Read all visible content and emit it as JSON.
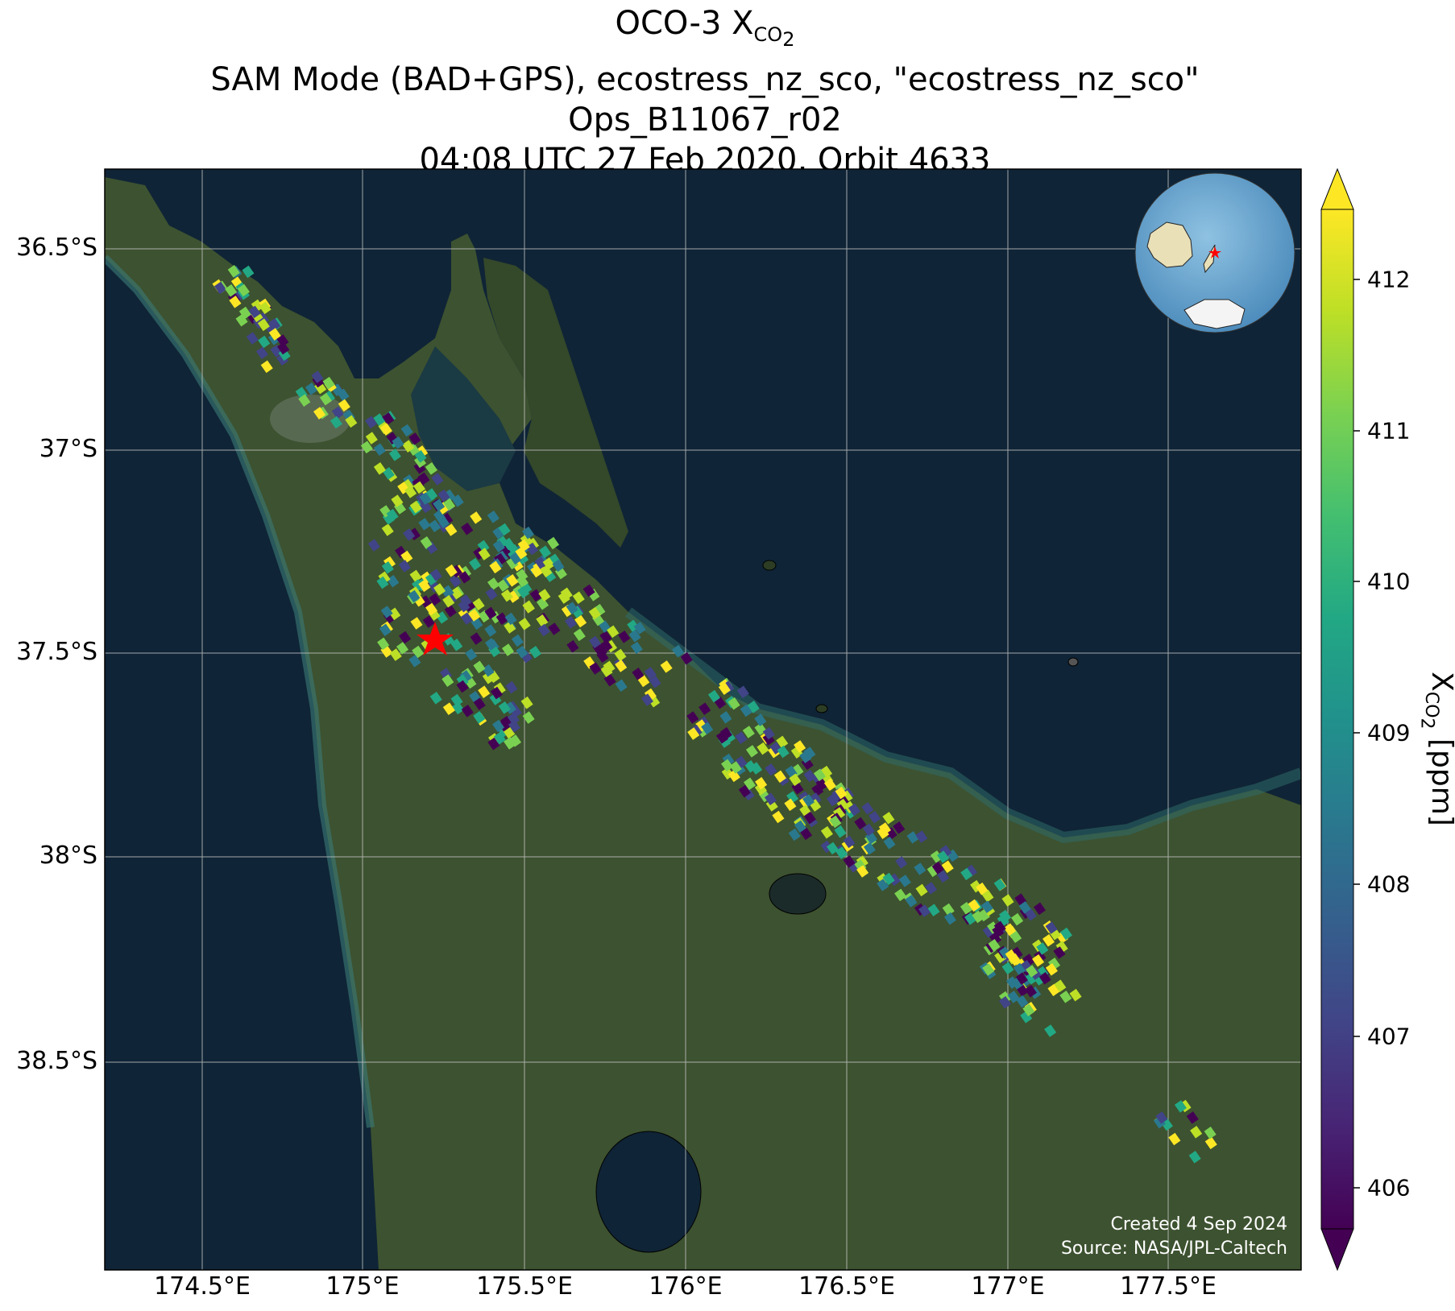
{
  "title": {
    "line1_prefix": "OCO-3 X",
    "line1_sub": "CO",
    "line1_sub2": "2",
    "line2": "SAM Mode (BAD+GPS), ecostress_nz_sco, \"ecostress_nz_sco\"",
    "line3": "Ops_B11067_r02",
    "line4": "04:08 UTC 27 Feb 2020, Orbit 4633"
  },
  "map": {
    "lat_labels": [
      "36.5°S",
      "37°S",
      "37.5°S",
      "38°S",
      "38.5°S"
    ],
    "lon_labels": [
      "174.5°E",
      "175°E",
      "175.5°E",
      "176°E",
      "176.5°E",
      "177°E",
      "177.5°E"
    ],
    "target_marker": "red-star",
    "inset": "globe-locator-with-red-star",
    "colors": {
      "sea": "#0f2436",
      "land": "#3a4d2a",
      "marker": "#ff0000",
      "grid": "#c8c8c8"
    }
  },
  "colorbar": {
    "ticks": [
      "406",
      "407",
      "408",
      "409",
      "410",
      "411",
      "412"
    ],
    "label_prefix": "X",
    "label_sub": "CO",
    "label_sub2": "2",
    "label_suffix": " [ppm]",
    "colormap": "viridis",
    "extend": "both"
  },
  "credits": {
    "created": "Created 4 Sep 2024",
    "source": "Source: NASA/JPL-Caltech"
  }
}
